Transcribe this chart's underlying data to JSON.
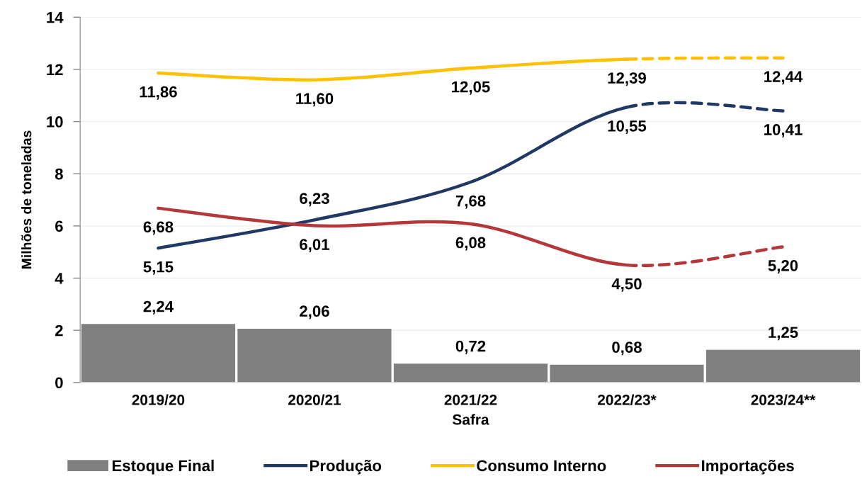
{
  "chart_data": {
    "type": "bar",
    "xlabel": "Safra",
    "ylabel": "Milhões de toneladas",
    "categories": [
      "2019/20",
      "2020/21",
      "2021/22",
      "2022/23*",
      "2023/24**"
    ],
    "ylim": [
      0,
      14
    ],
    "yticks": [
      0,
      2,
      4,
      6,
      8,
      10,
      12,
      14
    ],
    "grid": "y",
    "legend": "bottom",
    "line_style": "solid",
    "series": [
      {
        "name": "Estoque Final",
        "color": "#808080",
        "values": [
          2.24,
          2.06,
          0.72,
          0.68,
          1.25
        ],
        "value_labels": [
          "2,24",
          "2,06",
          "0,72",
          "0,68",
          "1,25"
        ]
      },
      {
        "name": "Produção",
        "type": "line",
        "color": "#1f3864",
        "values": [
          5.15,
          6.23,
          7.68,
          10.55,
          null
        ],
        "value_labels": [
          "5,15",
          "6,23",
          "7,68",
          "10,55",
          null
        ]
      },
      {
        "type": "line",
        "color": "#1f3864",
        "line_style": "dashed",
        "values": [
          null,
          null,
          null,
          10.55,
          10.41
        ],
        "value_labels": [
          null,
          null,
          null,
          null,
          "10,41"
        ]
      },
      {
        "name": "Consumo Interno",
        "type": "line",
        "color": "#ffc000",
        "values": [
          11.86,
          11.6,
          12.05,
          12.39,
          null
        ],
        "value_labels": [
          "11,86",
          "11,60",
          "12,05",
          "12,39",
          null
        ]
      },
      {
        "type": "line",
        "color": "#ffc000",
        "line_style": "dashed",
        "values": [
          null,
          null,
          null,
          12.39,
          12.44
        ],
        "value_labels": [
          null,
          null,
          null,
          null,
          "12,44"
        ]
      },
      {
        "name": "Importações",
        "type": "line",
        "color": "#b4373a",
        "values": [
          6.68,
          6.01,
          6.08,
          4.5,
          null
        ],
        "value_labels": [
          "6,68",
          "6,01",
          "6,08",
          "4,50",
          null
        ]
      },
      {
        "type": "line",
        "color": "#b4373a",
        "line_style": "dashed",
        "values": [
          null,
          null,
          null,
          4.5,
          5.2
        ],
        "value_labels": [
          null,
          null,
          null,
          null,
          "5,20"
        ]
      }
    ]
  }
}
